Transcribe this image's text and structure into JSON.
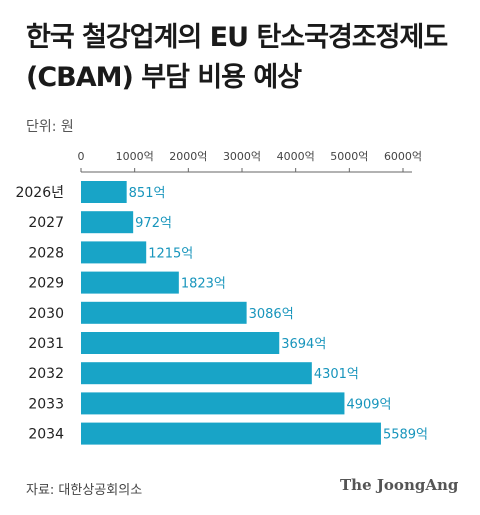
{
  "title_line1": "한국 철강업계의 EU 탄소국경조정제도",
  "title_line2": "(CBAM) 부담 비용 예상",
  "unit": "단위: 원",
  "source": "자료: 대한상공회의소",
  "logo_text": "The JoongAng",
  "colors": {
    "bar": "#18A4C7",
    "label": "#1895BC",
    "axis": "#666666",
    "text": "#222222"
  },
  "chart_data": {
    "type": "bar",
    "orientation": "horizontal",
    "title": "한국 철강업계의 EU 탄소국경조정제도 (CBAM) 부담 비용 예상",
    "unit": "단위: 원",
    "categories": [
      "2026년",
      "2027",
      "2028",
      "2029",
      "2030",
      "2031",
      "2032",
      "2033",
      "2034"
    ],
    "values": [
      851,
      972,
      1215,
      1823,
      3086,
      3694,
      4301,
      4909,
      5589
    ],
    "value_labels": [
      "851억",
      "972억",
      "1215억",
      "1823억",
      "3086억",
      "3694억",
      "4301억",
      "4909억",
      "5589억"
    ],
    "xlim": [
      0,
      6000
    ],
    "xticks": [
      0,
      1000,
      2000,
      3000,
      4000,
      5000,
      6000
    ],
    "xtick_labels": [
      "0",
      "1000억",
      "2000억",
      "3000억",
      "4000억",
      "5000억",
      "6000억"
    ],
    "xtick_position": "top",
    "grid": false,
    "legend": "none"
  }
}
